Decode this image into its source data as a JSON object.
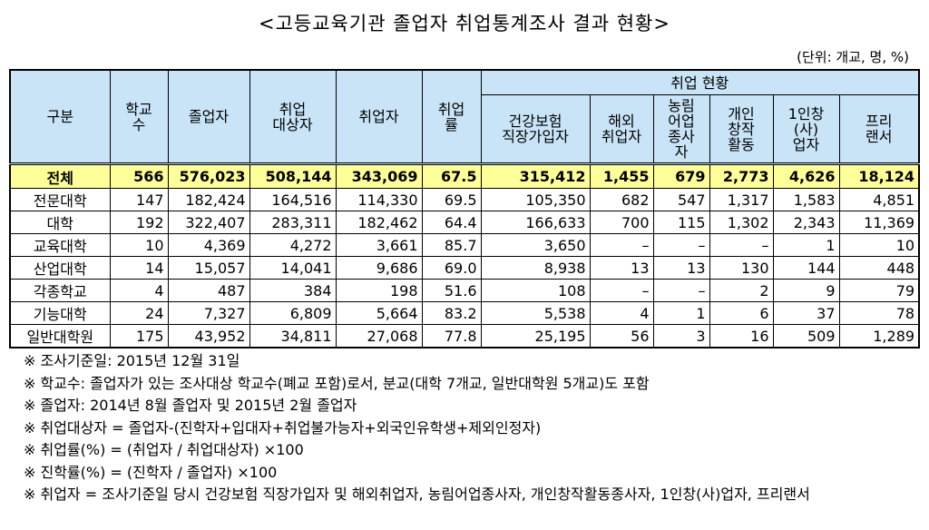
{
  "header": {
    "title": "<고등교육기관 졸업자 취업통계조사 결과 현황>",
    "unit": "(단위: 개교, 명, %)"
  },
  "table": {
    "columns": [
      "구분",
      "학교\n수",
      "졸업자",
      "취업\n대상자",
      "취업자",
      "취업\n률"
    ],
    "group": "취업 현황",
    "subcolumns": [
      "건강보험\n직장가입자",
      "해외\n취업자",
      "농림\n어업\n종사\n자",
      "개인\n창작\n활동",
      "1인창\n(사)\n업자",
      "프리\n랜서"
    ],
    "rows": [
      [
        "전체",
        "566",
        "576,023",
        "508,144",
        "343,069",
        "67.5",
        "315,412",
        "1,455",
        "679",
        "2,773",
        "4,626",
        "18,124"
      ],
      [
        "전문대학",
        "147",
        "182,424",
        "164,516",
        "114,330",
        "69.5",
        "105,350",
        "682",
        "547",
        "1,317",
        "1,583",
        "4,851"
      ],
      [
        "대학",
        "192",
        "322,407",
        "283,311",
        "182,462",
        "64.4",
        "166,633",
        "700",
        "115",
        "1,302",
        "2,343",
        "11,369"
      ],
      [
        "교육대학",
        "10",
        "4,369",
        "4,272",
        "3,661",
        "85.7",
        "3,650",
        "–",
        "–",
        "–",
        "1",
        "10"
      ],
      [
        "산업대학",
        "14",
        "15,057",
        "14,041",
        "9,686",
        "69.0",
        "8,938",
        "13",
        "13",
        "130",
        "144",
        "448"
      ],
      [
        "각종학교",
        "4",
        "487",
        "384",
        "198",
        "51.6",
        "108",
        "–",
        "–",
        "2",
        "9",
        "79"
      ],
      [
        "기능대학",
        "24",
        "7,327",
        "6,809",
        "5,664",
        "83.2",
        "5,538",
        "4",
        "1",
        "6",
        "37",
        "78"
      ],
      [
        "일반대학원",
        "175",
        "43,952",
        "34,811",
        "27,068",
        "77.8",
        "25,195",
        "56",
        "3",
        "16",
        "509",
        "1,289"
      ]
    ]
  },
  "notes": [
    "※ 조사기준일: 2015년 12월 31일",
    "※ 학교수: 졸업자가 있는 조사대상 학교수(폐교 포함)로서, 분교(대학 7개교, 일반대학원 5개교)도 포함",
    "※ 졸업자: 2014년 8월 졸업자 및 2015년 2월 졸업자",
    "※ 취업대상자 = 졸업자-(진학자+입대자+취업불가능자+외국인유학생+제외인정자)",
    "※ 취업률(%) = (취업자 / 취업대상자) ×100",
    "※ 진학률(%) = (진학자 / 졸업자) ×100",
    "※ 취업자 = 조사기준일 당시 건강보험 직장가입자 및 해외취업자, 농림어업종사자, 개인창작활동종사자, 1인창(사)업자, 프리랜서"
  ]
}
